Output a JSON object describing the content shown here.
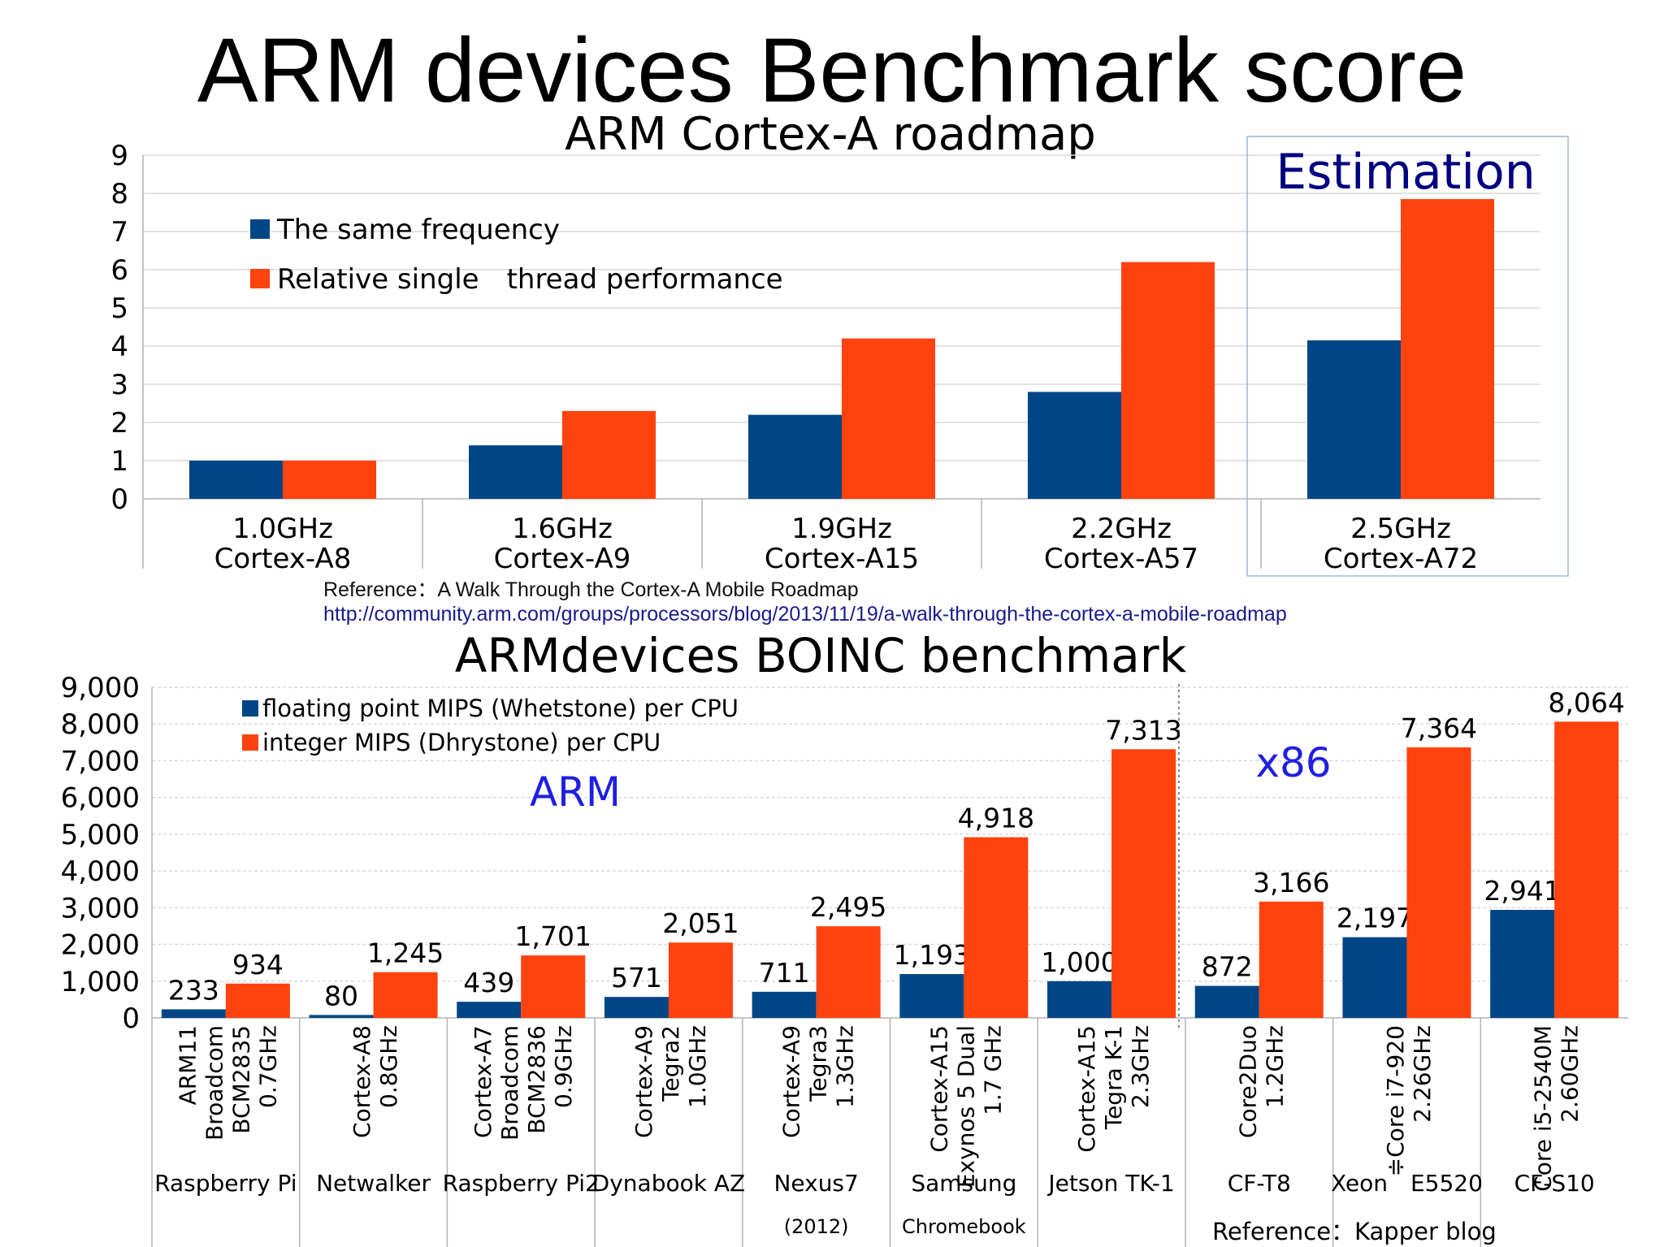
{
  "page": {
    "title": "ARM devices Benchmark score"
  },
  "reference_top": {
    "text": "Reference：A Walk Through the Cortex-A Mobile Roadmap",
    "url": "http://community.arm.com/groups/processors/blog/2013/11/19/a-walk-through-the-cortex-a-mobile-roadmap"
  },
  "colors": {
    "series_blue": "#004586",
    "series_orange": "#ff420e",
    "grid": "#d9d9d9",
    "estimation": "#000080",
    "region_label": "#1f1fe0"
  },
  "chart_data": [
    {
      "type": "bar",
      "title": "ARM Cortex-A roadmap",
      "categories": [
        [
          "1.0GHz",
          "Cortex-A8"
        ],
        [
          "1.6GHz",
          "Cortex-A9"
        ],
        [
          "1.9GHz",
          "Cortex-A15"
        ],
        [
          "2.2GHz",
          "Cortex-A57"
        ],
        [
          "2.5GHz",
          "Cortex-A72"
        ]
      ],
      "series": [
        {
          "name": "The same frequency",
          "values": [
            1.0,
            1.4,
            2.2,
            2.8,
            4.15
          ]
        },
        {
          "name": "Relative single　thread performance",
          "values": [
            1.0,
            2.3,
            4.2,
            6.2,
            7.85
          ]
        }
      ],
      "ylim": [
        0,
        9
      ],
      "yticks": [
        "0",
        "1",
        "2",
        "3",
        "4",
        "5",
        "6",
        "7",
        "8",
        "9"
      ],
      "grid": true,
      "legend": "top-left",
      "annotations": [
        "Estimation"
      ]
    },
    {
      "type": "bar",
      "title": "ARMdevices BOINC benchmark",
      "categories": [
        {
          "spec": [
            "ARM11",
            "Broadcom",
            "BCM2835",
            "0.7GHz"
          ],
          "device": [
            "Raspberry Pi"
          ]
        },
        {
          "spec": [
            "Cortex-A8",
            "0.8GHz"
          ],
          "device": [
            "Netwalker"
          ]
        },
        {
          "spec": [
            "Cortex-A7",
            "Broadcom",
            "BCM2836",
            "0.9GHz"
          ],
          "device": [
            "Raspberry Pi2"
          ]
        },
        {
          "spec": [
            "Cortex-A9",
            "Tegra2",
            "1.0GHz"
          ],
          "device": [
            "Dynabook AZ"
          ]
        },
        {
          "spec": [
            "Cortex-A9",
            "Tegra3",
            "1.3GHz"
          ],
          "device": [
            "Nexus7",
            "(2012)"
          ]
        },
        {
          "spec": [
            "Cortex-A15",
            "Exynos 5 Dual",
            "1.7 GHz"
          ],
          "device": [
            "Samsung",
            "Chromebook"
          ]
        },
        {
          "spec": [
            "Cortex-A15",
            "Tegra K-1",
            "2.3GHz"
          ],
          "device": [
            "Jetson TK-1"
          ]
        },
        {
          "spec": [
            "Core2Duo",
            "1.2GHz"
          ],
          "device": [
            "CF-T8"
          ]
        },
        {
          "spec": [
            "≑Core i7-920",
            "2.26GHz"
          ],
          "device": [
            "Xeon　E5520"
          ]
        },
        {
          "spec": [
            "Core i5-2540M",
            "2.60GHz"
          ],
          "device": [
            "CF-S10"
          ]
        }
      ],
      "series": [
        {
          "name": "floating point MIPS (Whetstone) per CPU",
          "values": [
            233,
            80,
            439,
            571,
            711,
            1193,
            1000,
            872,
            2197,
            2941
          ]
        },
        {
          "name": "integer MIPS (Dhrystone) per CPU",
          "values": [
            934,
            1245,
            1701,
            2051,
            2495,
            4918,
            7313,
            3166,
            7364,
            8064
          ]
        }
      ],
      "ylim": [
        0,
        9000
      ],
      "yticks": [
        "0",
        "1,000",
        "2,000",
        "3,000",
        "4,000",
        "5,000",
        "6,000",
        "7,000",
        "8,000",
        "9,000"
      ],
      "grid": true,
      "legend": "top-left",
      "regions": [
        "ARM",
        "x86"
      ],
      "reference": "Reference：Kapper blog"
    }
  ]
}
